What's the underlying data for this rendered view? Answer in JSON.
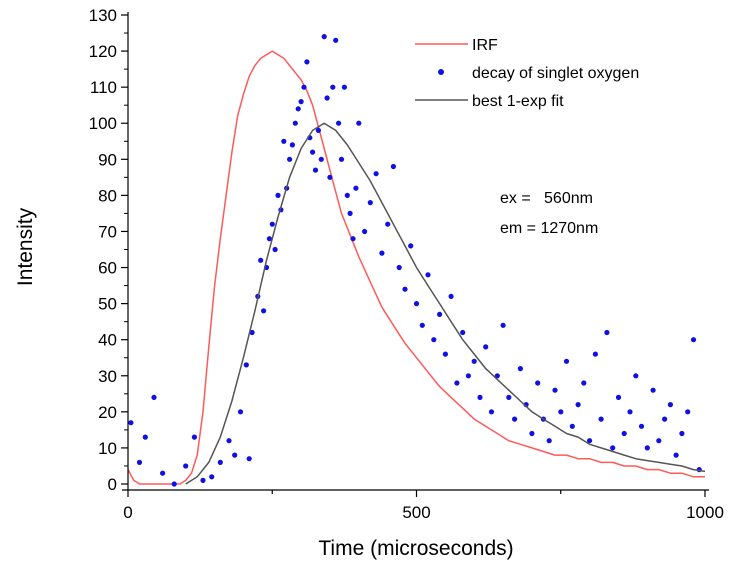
{
  "chart_data": {
    "type": "scatter",
    "title": "",
    "xlabel": "Time (microseconds)",
    "ylabel": "Intensity",
    "xlim": [
      0,
      1000
    ],
    "ylim": [
      0,
      130
    ],
    "x_ticks": [
      0,
      500,
      1000
    ],
    "y_ticks": [
      0,
      10,
      20,
      30,
      40,
      50,
      60,
      70,
      80,
      90,
      100,
      110,
      120,
      130
    ],
    "grid": false,
    "legend_position": "top-right",
    "annotations": [
      "ex =   560nm",
      "em = 1270nm"
    ],
    "series": [
      {
        "name": "IRF",
        "kind": "line",
        "color": "#ff5a5a",
        "x": [
          0,
          10,
          20,
          40,
          60,
          80,
          90,
          100,
          110,
          120,
          130,
          140,
          150,
          160,
          170,
          180,
          190,
          200,
          210,
          220,
          230,
          240,
          250,
          260,
          270,
          280,
          290,
          300,
          310,
          320,
          330,
          340,
          350,
          360,
          370,
          380,
          390,
          400,
          420,
          440,
          460,
          480,
          500,
          520,
          540,
          560,
          580,
          600,
          620,
          640,
          660,
          680,
          700,
          720,
          740,
          760,
          780,
          800,
          820,
          840,
          860,
          880,
          900,
          920,
          940,
          960,
          980,
          1000
        ],
        "y": [
          4,
          1,
          0,
          0,
          0,
          0,
          0,
          1,
          3,
          8,
          20,
          38,
          55,
          68,
          80,
          92,
          102,
          108,
          113,
          116,
          118,
          119,
          120,
          119,
          118,
          116,
          114,
          112,
          109,
          105,
          99,
          93,
          87,
          81,
          75,
          71,
          67,
          63,
          56,
          49,
          44,
          39,
          35,
          31,
          27,
          24,
          21,
          18,
          16,
          14,
          12,
          11,
          10,
          9,
          8,
          8,
          7,
          7,
          6,
          6,
          5,
          5,
          4,
          4,
          3,
          3,
          2,
          2
        ]
      },
      {
        "name": "decay of singlet oxygen",
        "kind": "scatter",
        "color": "#1010e6",
        "x": [
          5,
          20,
          30,
          45,
          60,
          80,
          100,
          115,
          130,
          145,
          160,
          175,
          185,
          195,
          205,
          210,
          215,
          225,
          230,
          235,
          240,
          245,
          250,
          255,
          260,
          265,
          270,
          275,
          280,
          285,
          290,
          295,
          300,
          305,
          310,
          315,
          320,
          325,
          330,
          335,
          340,
          345,
          350,
          355,
          360,
          365,
          370,
          375,
          380,
          385,
          390,
          395,
          400,
          410,
          420,
          430,
          440,
          450,
          460,
          470,
          480,
          490,
          500,
          510,
          520,
          530,
          540,
          550,
          560,
          570,
          580,
          590,
          600,
          610,
          620,
          630,
          640,
          650,
          660,
          670,
          680,
          690,
          700,
          710,
          720,
          730,
          740,
          750,
          760,
          770,
          780,
          790,
          800,
          810,
          820,
          830,
          840,
          850,
          860,
          870,
          880,
          890,
          900,
          910,
          920,
          930,
          940,
          950,
          960,
          970,
          980,
          990
        ],
        "y": [
          17,
          6,
          13,
          24,
          3,
          0,
          5,
          13,
          1,
          2,
          6,
          12,
          8,
          20,
          33,
          7,
          42,
          52,
          62,
          48,
          60,
          68,
          72,
          65,
          80,
          76,
          95,
          82,
          90,
          94,
          100,
          104,
          106,
          110,
          117,
          96,
          92,
          87,
          98,
          90,
          124,
          107,
          85,
          110,
          123,
          100,
          90,
          110,
          80,
          75,
          68,
          82,
          100,
          70,
          78,
          86,
          64,
          72,
          88,
          60,
          54,
          66,
          50,
          44,
          58,
          40,
          47,
          36,
          52,
          28,
          42,
          30,
          34,
          24,
          38,
          20,
          30,
          44,
          24,
          18,
          32,
          22,
          14,
          28,
          18,
          12,
          26,
          20,
          34,
          16,
          22,
          28,
          12,
          36,
          18,
          42,
          10,
          24,
          14,
          20,
          30,
          16,
          10,
          26,
          12,
          18,
          22,
          8,
          14,
          20,
          40,
          4
        ]
      },
      {
        "name": "best 1-exp fit",
        "kind": "line",
        "color": "#555555",
        "x": [
          100,
          120,
          140,
          160,
          180,
          200,
          220,
          240,
          260,
          280,
          300,
          320,
          340,
          360,
          380,
          400,
          420,
          440,
          460,
          480,
          500,
          520,
          540,
          560,
          580,
          600,
          620,
          640,
          660,
          680,
          700,
          720,
          740,
          760,
          780,
          800,
          820,
          840,
          860,
          880,
          900,
          920,
          940,
          960,
          980,
          1000
        ],
        "y": [
          0,
          2,
          6,
          13,
          23,
          35,
          48,
          62,
          74,
          85,
          93,
          98,
          100,
          98,
          94,
          89,
          84,
          78,
          72,
          66,
          60,
          55,
          50,
          45,
          40,
          36,
          32,
          29,
          26,
          23,
          20,
          18,
          16,
          14,
          13,
          11,
          10,
          9,
          8,
          7,
          6.5,
          6,
          5.5,
          5,
          4,
          3.5
        ]
      }
    ]
  }
}
